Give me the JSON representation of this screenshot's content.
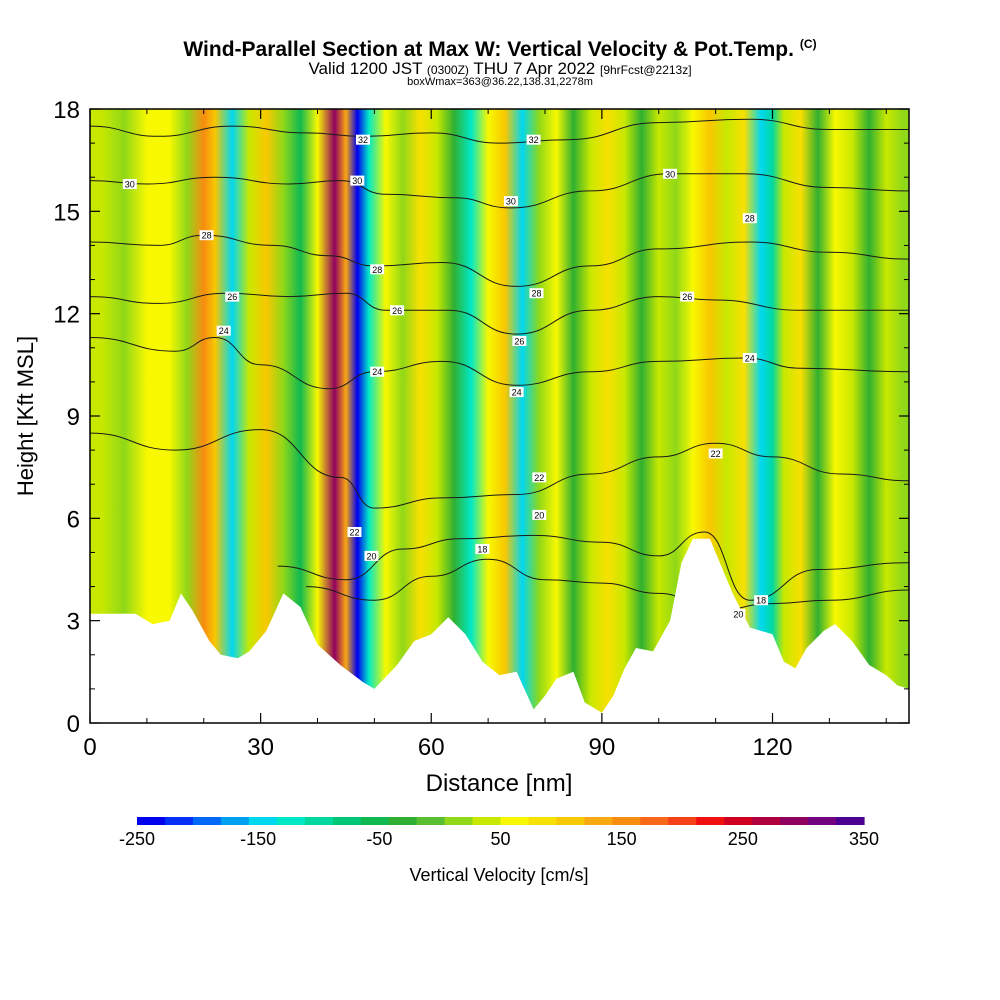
{
  "title": {
    "main": "Wind-Parallel Section at Max W: Vertical Velocity & Pot.Temp.",
    "copyright": "(C)",
    "valid_prefix": "Valid 1200 JST",
    "valid_utc": "(0300Z)",
    "valid_date": "THU 7 Apr 2022",
    "forecast": "[9hrFcst@2213z]",
    "box_info": "boxWmax=363@36.22,138.31,2278m"
  },
  "colorbar": {
    "label": "Vertical Velocity [cm/s]",
    "tick_labels": [
      "-250",
      "-150",
      "-50",
      "50",
      "150",
      "250",
      "350"
    ],
    "colors": [
      "#0000f0",
      "#0030f8",
      "#0068f8",
      "#00a0f0",
      "#00d8f0",
      "#00e8c8",
      "#00d8a0",
      "#00c878",
      "#10b850",
      "#30b030",
      "#58c030",
      "#90d818",
      "#c8e800",
      "#f8f800",
      "#f8e000",
      "#f8c800",
      "#f8a810",
      "#f88c10",
      "#f86818",
      "#f84018",
      "#f01010",
      "#d00020",
      "#b00040",
      "#900060",
      "#700080",
      "#4a0090"
    ]
  },
  "chart_data": {
    "type": "heatmap",
    "xlabel": "Distance [nm]",
    "ylabel": "Height [Kft MSL]",
    "xlim": [
      0,
      144
    ],
    "ylim": [
      0,
      18
    ],
    "x_ticks": [
      0,
      30,
      60,
      90,
      120
    ],
    "y_ticks": [
      0,
      3,
      6,
      9,
      12,
      15,
      18
    ],
    "colorbar_range": [
      -250,
      350
    ],
    "w_columns": [
      {
        "x": 2,
        "w": 40
      },
      {
        "x": 6,
        "w": 20
      },
      {
        "x": 10,
        "w": 60
      },
      {
        "x": 14,
        "w": 70
      },
      {
        "x": 17,
        "w": 20
      },
      {
        "x": 20,
        "w": 150
      },
      {
        "x": 22,
        "w": 110
      },
      {
        "x": 25,
        "w": -140
      },
      {
        "x": 28,
        "w": 40
      },
      {
        "x": 31,
        "w": 110
      },
      {
        "x": 34,
        "w": 20
      },
      {
        "x": 37,
        "w": -60
      },
      {
        "x": 40,
        "w": 60
      },
      {
        "x": 43,
        "w": 300
      },
      {
        "x": 45,
        "w": 120
      },
      {
        "x": 47,
        "w": -230
      },
      {
        "x": 49,
        "w": -120
      },
      {
        "x": 52,
        "w": 60
      },
      {
        "x": 55,
        "w": 20
      },
      {
        "x": 58,
        "w": 80
      },
      {
        "x": 61,
        "w": 30
      },
      {
        "x": 64,
        "w": -40
      },
      {
        "x": 67,
        "w": -120
      },
      {
        "x": 70,
        "w": 60
      },
      {
        "x": 73,
        "w": 100
      },
      {
        "x": 76,
        "w": -150
      },
      {
        "x": 79,
        "w": 20
      },
      {
        "x": 82,
        "w": 70
      },
      {
        "x": 85,
        "w": -30
      },
      {
        "x": 88,
        "w": 40
      },
      {
        "x": 91,
        "w": 90
      },
      {
        "x": 94,
        "w": 30
      },
      {
        "x": 97,
        "w": -40
      },
      {
        "x": 100,
        "w": 40
      },
      {
        "x": 103,
        "w": 20
      },
      {
        "x": 106,
        "w": 60
      },
      {
        "x": 109,
        "w": 110
      },
      {
        "x": 112,
        "w": 40
      },
      {
        "x": 115,
        "w": 90
      },
      {
        "x": 118,
        "w": -150
      },
      {
        "x": 120,
        "w": -90
      },
      {
        "x": 122,
        "w": 40
      },
      {
        "x": 125,
        "w": 90
      },
      {
        "x": 128,
        "w": -20
      },
      {
        "x": 131,
        "w": 60
      },
      {
        "x": 134,
        "w": 40
      },
      {
        "x": 137,
        "w": -40
      },
      {
        "x": 140,
        "w": 40
      },
      {
        "x": 143,
        "w": 20
      }
    ],
    "terrain": [
      {
        "x": 0,
        "h": 3.2
      },
      {
        "x": 8,
        "h": 3.2
      },
      {
        "x": 11,
        "h": 2.9
      },
      {
        "x": 14,
        "h": 3.0
      },
      {
        "x": 16,
        "h": 3.8
      },
      {
        "x": 18,
        "h": 3.3
      },
      {
        "x": 21,
        "h": 2.4
      },
      {
        "x": 23,
        "h": 2.0
      },
      {
        "x": 26,
        "h": 1.9
      },
      {
        "x": 28,
        "h": 2.1
      },
      {
        "x": 31,
        "h": 2.7
      },
      {
        "x": 34,
        "h": 3.8
      },
      {
        "x": 37,
        "h": 3.4
      },
      {
        "x": 40,
        "h": 2.3
      },
      {
        "x": 44,
        "h": 1.7
      },
      {
        "x": 48,
        "h": 1.2
      },
      {
        "x": 50,
        "h": 1.0
      },
      {
        "x": 54,
        "h": 1.7
      },
      {
        "x": 57,
        "h": 2.4
      },
      {
        "x": 60,
        "h": 2.6
      },
      {
        "x": 63,
        "h": 3.1
      },
      {
        "x": 66,
        "h": 2.6
      },
      {
        "x": 69,
        "h": 1.8
      },
      {
        "x": 72,
        "h": 1.4
      },
      {
        "x": 75,
        "h": 1.5
      },
      {
        "x": 78,
        "h": 0.4
      },
      {
        "x": 80,
        "h": 0.8
      },
      {
        "x": 82,
        "h": 1.3
      },
      {
        "x": 85,
        "h": 1.5
      },
      {
        "x": 87,
        "h": 0.6
      },
      {
        "x": 90,
        "h": 0.3
      },
      {
        "x": 92,
        "h": 0.8
      },
      {
        "x": 94,
        "h": 1.6
      },
      {
        "x": 96,
        "h": 2.2
      },
      {
        "x": 99,
        "h": 2.1
      },
      {
        "x": 102,
        "h": 3.0
      },
      {
        "x": 104,
        "h": 4.7
      },
      {
        "x": 106,
        "h": 5.4
      },
      {
        "x": 109,
        "h": 5.4
      },
      {
        "x": 111,
        "h": 4.6
      },
      {
        "x": 113,
        "h": 3.8
      },
      {
        "x": 116,
        "h": 2.8
      },
      {
        "x": 120,
        "h": 2.6
      },
      {
        "x": 122,
        "h": 1.8
      },
      {
        "x": 124,
        "h": 1.6
      },
      {
        "x": 126,
        "h": 2.2
      },
      {
        "x": 129,
        "h": 2.7
      },
      {
        "x": 131,
        "h": 2.9
      },
      {
        "x": 134,
        "h": 2.4
      },
      {
        "x": 137,
        "h": 1.7
      },
      {
        "x": 140,
        "h": 1.4
      },
      {
        "x": 142,
        "h": 1.1
      },
      {
        "x": 144,
        "h": 1.0
      }
    ],
    "theta_contours": [
      {
        "level": 18,
        "points": [
          [
            38,
            4.0
          ],
          [
            50,
            3.6
          ],
          [
            60,
            4.3
          ],
          [
            70,
            4.8
          ],
          [
            80,
            4.2
          ],
          [
            90,
            4.1
          ],
          [
            100,
            3.8
          ],
          [
            110,
            3.3
          ],
          [
            120,
            3.5
          ],
          [
            130,
            3.6
          ],
          [
            144,
            3.9
          ]
        ]
      },
      {
        "level": 20,
        "points": [
          [
            33,
            4.6
          ],
          [
            45,
            4.2
          ],
          [
            55,
            5.1
          ],
          [
            65,
            5.4
          ],
          [
            78,
            5.5
          ],
          [
            90,
            5.3
          ],
          [
            100,
            4.9
          ],
          [
            108,
            5.6
          ],
          [
            116,
            3.6
          ],
          [
            128,
            4.5
          ],
          [
            144,
            4.7
          ]
        ]
      },
      {
        "level": 22,
        "points": [
          [
            0,
            8.5
          ],
          [
            15,
            8.0
          ],
          [
            30,
            8.6
          ],
          [
            44,
            7.2
          ],
          [
            50,
            6.3
          ],
          [
            62,
            6.6
          ],
          [
            75,
            6.7
          ],
          [
            88,
            7.3
          ],
          [
            100,
            7.8
          ],
          [
            110,
            8.2
          ],
          [
            120,
            7.8
          ],
          [
            132,
            7.3
          ],
          [
            144,
            7.1
          ]
        ]
      },
      {
        "level": 24,
        "points": [
          [
            0,
            11.3
          ],
          [
            15,
            10.9
          ],
          [
            22,
            11.3
          ],
          [
            30,
            10.5
          ],
          [
            42,
            9.8
          ],
          [
            50,
            10.3
          ],
          [
            62,
            10.6
          ],
          [
            75,
            9.9
          ],
          [
            88,
            10.3
          ],
          [
            100,
            10.6
          ],
          [
            115,
            10.7
          ],
          [
            125,
            10.4
          ],
          [
            144,
            10.3
          ]
        ]
      },
      {
        "level": 26,
        "points": [
          [
            0,
            12.5
          ],
          [
            12,
            12.3
          ],
          [
            24,
            12.6
          ],
          [
            35,
            12.5
          ],
          [
            45,
            12.6
          ],
          [
            52,
            12.1
          ],
          [
            63,
            12.1
          ],
          [
            75,
            11.4
          ],
          [
            88,
            12.1
          ],
          [
            100,
            12.5
          ],
          [
            110,
            12.4
          ],
          [
            125,
            12.1
          ],
          [
            144,
            12.1
          ]
        ]
      },
      {
        "level": 28,
        "points": [
          [
            0,
            14.1
          ],
          [
            12,
            14.0
          ],
          [
            20,
            14.3
          ],
          [
            32,
            14.0
          ],
          [
            42,
            13.7
          ],
          [
            50,
            13.4
          ],
          [
            62,
            13.5
          ],
          [
            75,
            12.8
          ],
          [
            88,
            13.4
          ],
          [
            100,
            13.9
          ],
          [
            116,
            14.1
          ],
          [
            130,
            13.8
          ],
          [
            144,
            13.6
          ]
        ]
      },
      {
        "level": 30,
        "points": [
          [
            0,
            15.9
          ],
          [
            10,
            15.8
          ],
          [
            22,
            16.0
          ],
          [
            35,
            15.8
          ],
          [
            44,
            15.9
          ],
          [
            52,
            15.5
          ],
          [
            64,
            15.4
          ],
          [
            74,
            15.1
          ],
          [
            88,
            15.6
          ],
          [
            102,
            16.1
          ],
          [
            115,
            16.1
          ],
          [
            130,
            15.7
          ],
          [
            144,
            15.6
          ]
        ]
      },
      {
        "level": 32,
        "points": [
          [
            0,
            17.5
          ],
          [
            12,
            17.2
          ],
          [
            25,
            17.5
          ],
          [
            38,
            17.3
          ],
          [
            48,
            17.2
          ],
          [
            60,
            17.3
          ],
          [
            72,
            17.0
          ],
          [
            84,
            17.1
          ],
          [
            100,
            17.6
          ],
          [
            116,
            17.7
          ],
          [
            130,
            17.4
          ],
          [
            144,
            17.4
          ]
        ]
      }
    ],
    "contour_labels": [
      {
        "text": "30",
        "x": 7,
        "y": 15.8
      },
      {
        "text": "28",
        "x": 20.5,
        "y": 14.3
      },
      {
        "text": "26",
        "x": 25,
        "y": 12.5
      },
      {
        "text": "24",
        "x": 23.5,
        "y": 11.5
      },
      {
        "text": "32",
        "x": 48,
        "y": 17.1
      },
      {
        "text": "30",
        "x": 47,
        "y": 15.9
      },
      {
        "text": "28",
        "x": 50.5,
        "y": 13.3
      },
      {
        "text": "26",
        "x": 54,
        "y": 12.1
      },
      {
        "text": "24",
        "x": 50.5,
        "y": 10.3
      },
      {
        "text": "22",
        "x": 46.5,
        "y": 5.6
      },
      {
        "text": "20",
        "x": 49.5,
        "y": 4.9
      },
      {
        "text": "32",
        "x": 78,
        "y": 17.1
      },
      {
        "text": "30",
        "x": 74,
        "y": 15.3
      },
      {
        "text": "28",
        "x": 78.5,
        "y": 12.6
      },
      {
        "text": "26",
        "x": 75.5,
        "y": 11.2
      },
      {
        "text": "24",
        "x": 75,
        "y": 9.7
      },
      {
        "text": "22",
        "x": 79,
        "y": 7.2
      },
      {
        "text": "20",
        "x": 79,
        "y": 6.1
      },
      {
        "text": "18",
        "x": 69,
        "y": 5.1
      },
      {
        "text": "30",
        "x": 102,
        "y": 16.1
      },
      {
        "text": "28",
        "x": 116,
        "y": 14.8
      },
      {
        "text": "26",
        "x": 105,
        "y": 12.5
      },
      {
        "text": "24",
        "x": 116,
        "y": 10.7
      },
      {
        "text": "22",
        "x": 110,
        "y": 7.9
      },
      {
        "text": "20",
        "x": 114,
        "y": 3.2
      },
      {
        "text": "18",
        "x": 118,
        "y": 3.6
      }
    ]
  }
}
